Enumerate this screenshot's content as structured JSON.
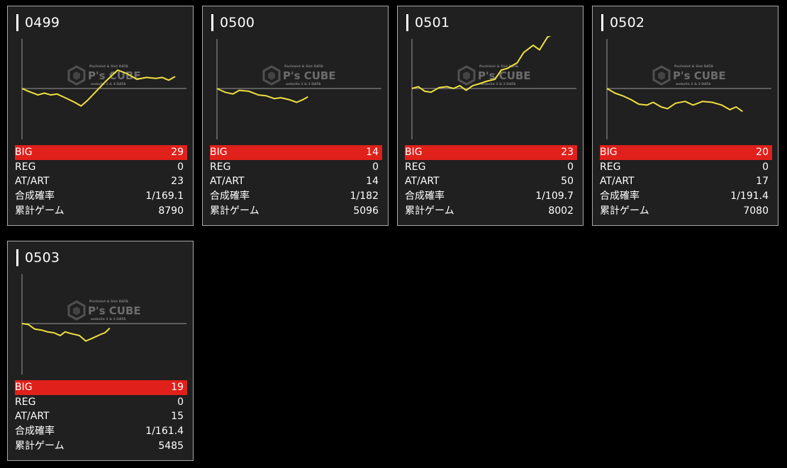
{
  "machines": [
    {
      "number": "0499",
      "stats": [
        {
          "label": "BIG",
          "value": "29"
        },
        {
          "label": "REG",
          "value": "0"
        },
        {
          "label": "AT/ART",
          "value": "23"
        },
        {
          "label": "合成確率",
          "value": "1/169.1"
        },
        {
          "label": "累計ゲーム",
          "value": "8790"
        }
      ],
      "graph": [
        [
          0,
          0
        ],
        [
          0.04,
          -0.3
        ],
        [
          0.1,
          -0.7
        ],
        [
          0.14,
          -0.5
        ],
        [
          0.18,
          -0.7
        ],
        [
          0.22,
          -0.6
        ],
        [
          0.27,
          -1.0
        ],
        [
          0.33,
          -1.5
        ],
        [
          0.37,
          -1.9
        ],
        [
          0.41,
          -1.3
        ],
        [
          0.46,
          -0.4
        ],
        [
          0.52,
          0.7
        ],
        [
          0.6,
          2.0
        ],
        [
          0.66,
          1.6
        ],
        [
          0.72,
          1.0
        ],
        [
          0.78,
          1.2
        ],
        [
          0.84,
          1.1
        ],
        [
          0.88,
          1.2
        ],
        [
          0.92,
          0.9
        ],
        [
          0.96,
          1.3
        ]
      ]
    },
    {
      "number": "0500",
      "stats": [
        {
          "label": "BIG",
          "value": "14"
        },
        {
          "label": "REG",
          "value": "0"
        },
        {
          "label": "AT/ART",
          "value": "14"
        },
        {
          "label": "合成確率",
          "value": "1/182"
        },
        {
          "label": "累計ゲーム",
          "value": "5096"
        }
      ],
      "graph": [
        [
          0,
          0
        ],
        [
          0.05,
          -0.4
        ],
        [
          0.1,
          -0.6
        ],
        [
          0.14,
          -0.2
        ],
        [
          0.2,
          -0.3
        ],
        [
          0.26,
          -0.7
        ],
        [
          0.31,
          -0.8
        ],
        [
          0.36,
          -1.1
        ],
        [
          0.4,
          -1.0
        ],
        [
          0.45,
          -1.2
        ],
        [
          0.5,
          -1.5
        ],
        [
          0.54,
          -1.2
        ],
        [
          0.57,
          -0.9
        ]
      ]
    },
    {
      "number": "0501",
      "stats": [
        {
          "label": "BIG",
          "value": "23"
        },
        {
          "label": "REG",
          "value": "0"
        },
        {
          "label": "AT/ART",
          "value": "50"
        },
        {
          "label": "合成確率",
          "value": "1/109.7"
        },
        {
          "label": "累計ゲーム",
          "value": "8002"
        }
      ],
      "graph": [
        [
          0,
          0
        ],
        [
          0.04,
          0.2
        ],
        [
          0.08,
          -0.3
        ],
        [
          0.12,
          -0.4
        ],
        [
          0.17,
          0.1
        ],
        [
          0.22,
          0.2
        ],
        [
          0.26,
          0.0
        ],
        [
          0.3,
          0.3
        ],
        [
          0.34,
          -0.2
        ],
        [
          0.38,
          0.3
        ],
        [
          0.42,
          0.5
        ],
        [
          0.47,
          0.8
        ],
        [
          0.52,
          1.0
        ],
        [
          0.56,
          2.0
        ],
        [
          0.6,
          2.2
        ],
        [
          0.66,
          2.8
        ],
        [
          0.7,
          3.9
        ],
        [
          0.76,
          4.7
        ],
        [
          0.8,
          4.2
        ],
        [
          0.85,
          5.6
        ],
        [
          0.9,
          6.0
        ]
      ]
    },
    {
      "number": "0502",
      "stats": [
        {
          "label": "BIG",
          "value": "20"
        },
        {
          "label": "REG",
          "value": "0"
        },
        {
          "label": "AT/ART",
          "value": "17"
        },
        {
          "label": "合成確率",
          "value": "1/191.4"
        },
        {
          "label": "累計ゲーム",
          "value": "7080"
        }
      ],
      "graph": [
        [
          0,
          0
        ],
        [
          0.05,
          -0.5
        ],
        [
          0.1,
          -0.8
        ],
        [
          0.15,
          -1.2
        ],
        [
          0.2,
          -1.7
        ],
        [
          0.25,
          -1.8
        ],
        [
          0.29,
          -1.5
        ],
        [
          0.34,
          -2.0
        ],
        [
          0.38,
          -2.2
        ],
        [
          0.43,
          -1.6
        ],
        [
          0.49,
          -1.4
        ],
        [
          0.54,
          -1.8
        ],
        [
          0.6,
          -1.4
        ],
        [
          0.66,
          -1.5
        ],
        [
          0.72,
          -1.8
        ],
        [
          0.77,
          -2.3
        ],
        [
          0.81,
          -2.0
        ],
        [
          0.85,
          -2.5
        ]
      ]
    },
    {
      "number": "0503",
      "stats": [
        {
          "label": "BIG",
          "value": "19"
        },
        {
          "label": "REG",
          "value": "0"
        },
        {
          "label": "AT/ART",
          "value": "15"
        },
        {
          "label": "合成確率",
          "value": "1/161.4"
        },
        {
          "label": "累計ゲーム",
          "value": "5485"
        }
      ],
      "graph": [
        [
          0,
          0
        ],
        [
          0.04,
          -0.1
        ],
        [
          0.08,
          -0.6
        ],
        [
          0.12,
          -0.7
        ],
        [
          0.16,
          -0.9
        ],
        [
          0.2,
          -1.0
        ],
        [
          0.24,
          -1.3
        ],
        [
          0.27,
          -0.9
        ],
        [
          0.31,
          -1.1
        ],
        [
          0.36,
          -1.3
        ],
        [
          0.4,
          -1.9
        ],
        [
          0.44,
          -1.6
        ],
        [
          0.49,
          -1.2
        ],
        [
          0.52,
          -1.0
        ],
        [
          0.55,
          -0.5
        ]
      ]
    }
  ],
  "watermark": {
    "brand": "P's CUBE",
    "tagline": "Pachislot & Slot DATA",
    "sub": "website 2 & 3 DATA"
  },
  "colors": {
    "big_row": "#e0201a",
    "graph_line": "#f0e040",
    "axis": "#9a9a9a",
    "card_bg": "#202020"
  }
}
